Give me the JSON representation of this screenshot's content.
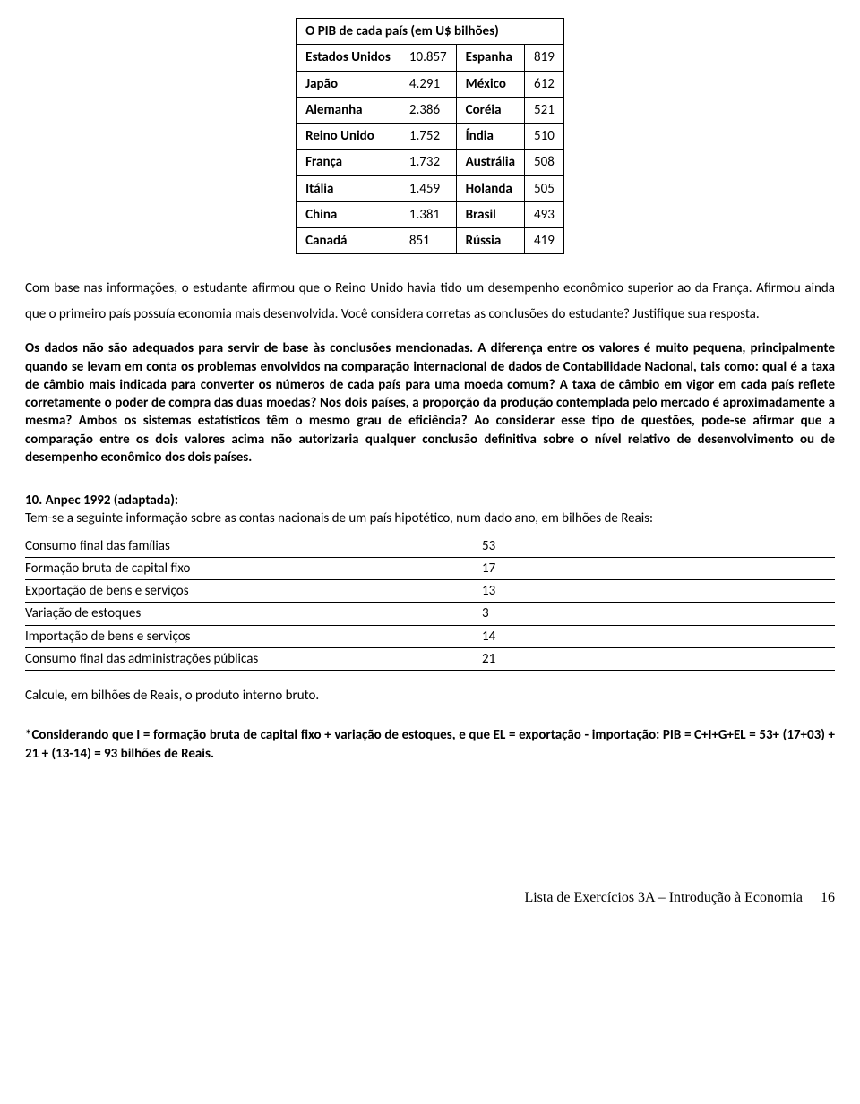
{
  "pib_table": {
    "title": "O PIB de cada país (em U$ bilhões)",
    "rows": [
      {
        "c1": "Estados Unidos",
        "v1": "10.857",
        "c2": "Espanha",
        "v2": "819"
      },
      {
        "c1": "Japão",
        "v1": "4.291",
        "c2": "México",
        "v2": "612"
      },
      {
        "c1": "Alemanha",
        "v1": "2.386",
        "c2": "Coréia",
        "v2": "521"
      },
      {
        "c1": "Reino Unido",
        "v1": "1.752",
        "c2": "Índia",
        "v2": "510"
      },
      {
        "c1": "França",
        "v1": "1.732",
        "c2": "Austrália",
        "v2": "508"
      },
      {
        "c1": "Itália",
        "v1": "1.459",
        "c2": "Holanda",
        "v2": "505"
      },
      {
        "c1": "China",
        "v1": "1.381",
        "c2": "Brasil",
        "v2": "493"
      },
      {
        "c1": "Canadá",
        "v1": "851",
        "c2": "Rússia",
        "v2": "419"
      }
    ]
  },
  "question_paragraph": "Com base nas informações, o estudante afirmou que o Reino Unido havia tido um desempenho econômico superior ao da França. Afirmou ainda que o primeiro país possuía economia mais desenvolvida. Você considera corretas as conclusões do estudante? Justifique sua resposta.",
  "answer_paragraph": "Os dados não são adequados para servir de base às conclusões mencionadas. A diferença entre os valores é muito pequena, principalmente quando se levam em conta os problemas envolvidos na comparação internacional de dados de Contabilidade Nacional, tais como: qual é a taxa de câmbio mais indicada para converter os números de cada país para uma moeda comum? A taxa de câmbio em vigor em cada país reflete corretamente o poder de compra das duas moedas? Nos dois países, a proporção da produção contemplada pelo mercado é aproximadamente a mesma? Ambos os sistemas estatísticos têm o mesmo grau de eficiência? Ao considerar esse tipo de questões, pode-se afirmar que a comparação entre os dois valores acima não autorizaria qualquer conclusão definitiva sobre o nível relativo de desenvolvimento ou de desempenho econômico dos dois países.",
  "q10_title": "10. Anpec 1992 (adaptada):",
  "q10_intro": "Tem-se a seguinte informação sobre as contas nacionais de um país hipotético, num dado ano, em bilhões de Reais:",
  "accounts": [
    {
      "label": "Consumo final das famílias",
      "value": "53",
      "first": true
    },
    {
      "label": "Formação bruta de capital fixo",
      "value": "17"
    },
    {
      "label": "Exportação de bens e serviços",
      "value": "13"
    },
    {
      "label": "Variação de estoques",
      "value": "  3"
    },
    {
      "label": "Importação de bens e serviços",
      "value": "14"
    },
    {
      "label": "Consumo final das administrações públicas",
      "value": "21"
    }
  ],
  "q10_ask": "Calcule, em bilhões de Reais, o produto interno bruto.",
  "q10_answer": "*Considerando que I = formação bruta de capital fixo + variação de estoques, e que EL = exportação - importação:  PIB = C+I+G+EL = 53+ (17+03) + 21 + (13-14) = 93 bilhões de Reais.",
  "footer_text": "Lista de Exercícios 3A – Introdução à Economia",
  "page_number": "16"
}
